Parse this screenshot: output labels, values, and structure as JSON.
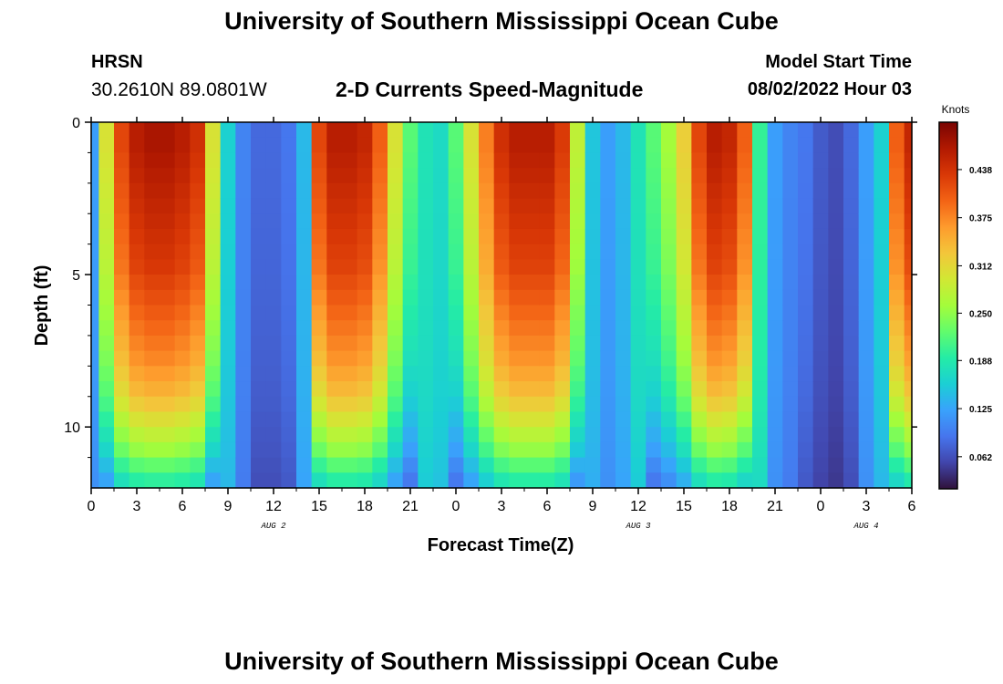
{
  "page_title": "University of Southern Mississippi Ocean Cube",
  "station": {
    "name": "HRSN",
    "coords": "30.2610N  89.0801W"
  },
  "subtitle": "2-D Currents Speed-Magnitude",
  "model_start": {
    "label": "Model Start Time",
    "value": "08/02/2022 Hour 03"
  },
  "footer_title": "University of Southern Mississippi Ocean Cube",
  "chart_data": {
    "type": "heatmap",
    "title": "2-D Currents Speed-Magnitude",
    "xlabel": "Forecast Time(Z)",
    "ylabel": "Depth (ft)",
    "x_tick_labels": [
      "0",
      "3",
      "6",
      "9",
      "12",
      "15",
      "18",
      "21",
      "0",
      "3",
      "6",
      "9",
      "12",
      "15",
      "18",
      "21",
      "0",
      "3",
      "6"
    ],
    "x_range_hours": [
      0,
      54
    ],
    "y_ticks": [
      0,
      5,
      10
    ],
    "y_tick_labels": [
      "0",
      "5",
      "10"
    ],
    "y_range": [
      0,
      12
    ],
    "y_inverted": true,
    "date_labels": [
      {
        "text": "AUG 2",
        "hour": 12
      },
      {
        "text": "AUG 3",
        "hour": 36
      },
      {
        "text": "AUG 4",
        "hour": 51
      }
    ],
    "colorbar": {
      "label": "Knots",
      "ticks": [
        "0.438",
        "0.375",
        "0.312",
        "0.250",
        "0.188",
        "0.125",
        "0.062"
      ],
      "tick_values": [
        0.438,
        0.375,
        0.312,
        0.25,
        0.188,
        0.125,
        0.062
      ],
      "range": [
        0.02,
        0.5
      ],
      "colormap": [
        "#30123b",
        "#4145ab",
        "#4675ed",
        "#39a2fc",
        "#1bcfd4",
        "#24eca6",
        "#61fc6c",
        "#a4fc3b",
        "#d1e834",
        "#f3c63a",
        "#fe9b2d",
        "#f36315",
        "#d93806",
        "#b11901",
        "#7a0402"
      ]
    },
    "depth_levels_ft": [
      0,
      0.5,
      1,
      1.5,
      2,
      2.5,
      3,
      3.5,
      4,
      4.5,
      5,
      5.5,
      6,
      6.5,
      7,
      7.5,
      8,
      8.5,
      9,
      9.5,
      10,
      10.5,
      11,
      11.5,
      12
    ],
    "speed_profiles": {
      "description": "Hourly surface speed (knots), hours 0..54; deeper layers decay toward a near-bottom minimum",
      "surface_knots": [
        0.12,
        0.3,
        0.42,
        0.46,
        0.47,
        0.47,
        0.46,
        0.44,
        0.3,
        0.16,
        0.1,
        0.08,
        0.08,
        0.09,
        0.14,
        0.42,
        0.46,
        0.46,
        0.45,
        0.4,
        0.3,
        0.22,
        0.18,
        0.17,
        0.22,
        0.3,
        0.38,
        0.44,
        0.46,
        0.46,
        0.46,
        0.43,
        0.28,
        0.15,
        0.12,
        0.14,
        0.18,
        0.22,
        0.26,
        0.32,
        0.42,
        0.46,
        0.45,
        0.4,
        0.2,
        0.12,
        0.1,
        0.09,
        0.07,
        0.06,
        0.08,
        0.12,
        0.16,
        0.4,
        0.45
      ],
      "depth_scale": [
        1.0,
        1.0,
        0.99,
        0.98,
        0.97,
        0.96,
        0.95,
        0.94,
        0.93,
        0.92,
        0.9,
        0.88,
        0.86,
        0.84,
        0.82,
        0.8,
        0.77,
        0.74,
        0.7,
        0.65,
        0.6,
        0.55,
        0.48,
        0.42,
        0.36
      ]
    }
  }
}
